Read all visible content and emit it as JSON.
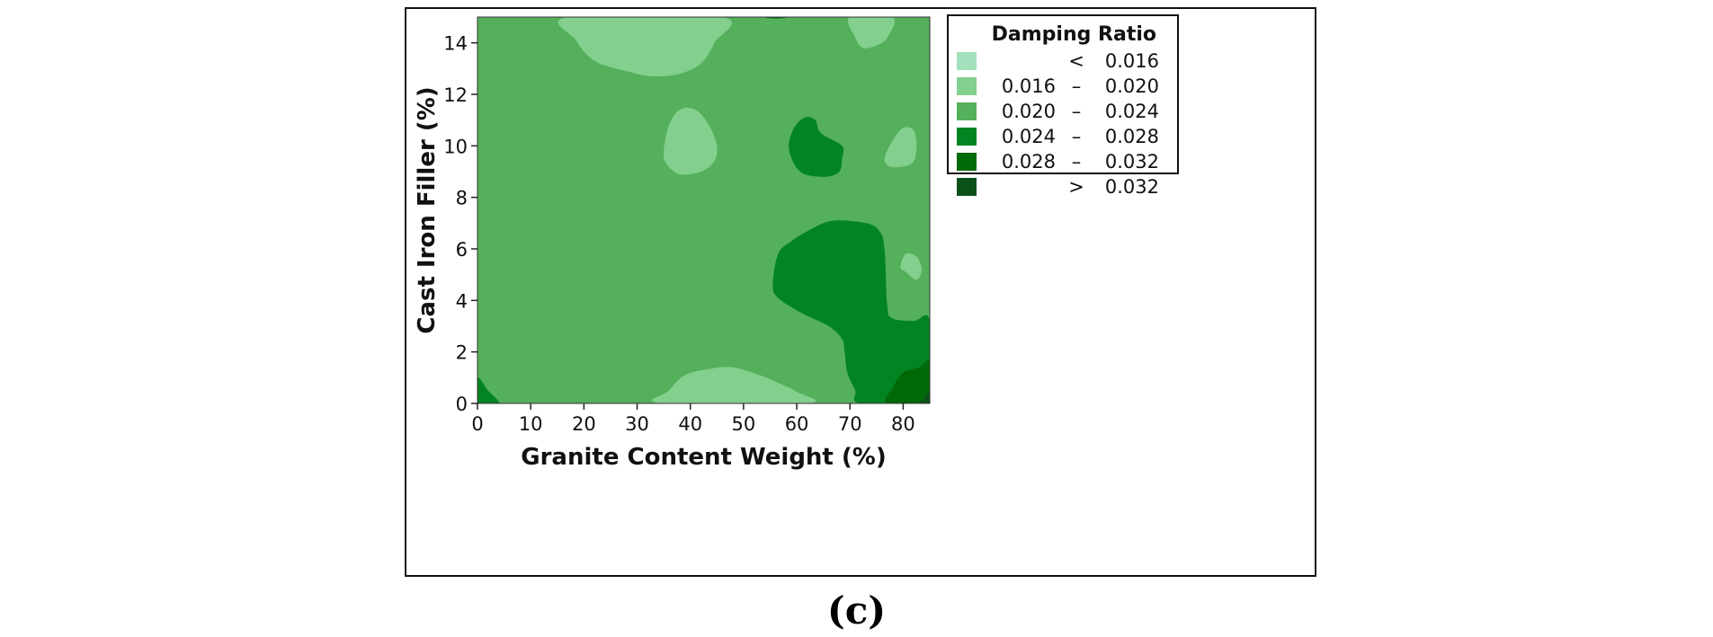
{
  "chart_data": {
    "type": "contour",
    "xlabel": "Granite Content Weight (%)",
    "ylabel": "Cast Iron Filler (%)",
    "xlim": [
      0,
      85
    ],
    "ylim": [
      0,
      15
    ],
    "xticks": [
      0,
      10,
      20,
      30,
      40,
      50,
      60,
      70,
      80
    ],
    "yticks": [
      0,
      2,
      4,
      6,
      8,
      10,
      12,
      14
    ],
    "legend": {
      "title": "Damping Ratio",
      "placement": "right",
      "entries": [
        {
          "lo": "",
          "sep": "<",
          "hi": "0.016",
          "color": "#a3e0bc"
        },
        {
          "lo": "0.016",
          "sep": "–",
          "hi": "0.020",
          "color": "#83cf8e"
        },
        {
          "lo": "0.020",
          "sep": "–",
          "hi": "0.024",
          "color": "#55b05b"
        },
        {
          "lo": "0.024",
          "sep": "–",
          "hi": "0.028",
          "color": "#028422"
        },
        {
          "lo": "0.028",
          "sep": "–",
          "hi": "0.032",
          "color": "#016a08"
        },
        {
          "lo": "",
          "sep": ">",
          "hi": "0.032",
          "color": "#0a5018"
        }
      ]
    },
    "background_level": "0.020 – 0.024",
    "regions": [
      {
        "level": "0.016 – 0.020",
        "points": [
          [
            17,
            15
          ],
          [
            46,
            15
          ],
          [
            44.5,
            14
          ],
          [
            42,
            13.2
          ],
          [
            38,
            12.8
          ],
          [
            33,
            12.7
          ],
          [
            28,
            12.9
          ],
          [
            22,
            13.3
          ],
          [
            18.5,
            14.1
          ]
        ]
      },
      {
        "level": "0.016 – 0.020",
        "points": [
          [
            35,
            9.8
          ],
          [
            36,
            10.8
          ],
          [
            38,
            11.4
          ],
          [
            41,
            11.4
          ],
          [
            43.5,
            10.8
          ],
          [
            45,
            10
          ],
          [
            44.5,
            9.4
          ],
          [
            42,
            9
          ],
          [
            38,
            8.9
          ],
          [
            35.5,
            9.3
          ]
        ]
      },
      {
        "level": "0.016 – 0.020",
        "points": [
          [
            34.5,
            0
          ],
          [
            36,
            0.5
          ],
          [
            39,
            1.1
          ],
          [
            44,
            1.35
          ],
          [
            48,
            1.4
          ],
          [
            53,
            1.1
          ],
          [
            57,
            0.75
          ],
          [
            60,
            0.45
          ],
          [
            62,
            0
          ]
        ]
      },
      {
        "level": "0.016 – 0.020",
        "points": [
          [
            70,
            15
          ],
          [
            78,
            15
          ],
          [
            77,
            14.2
          ],
          [
            75,
            13.9
          ],
          [
            72.5,
            13.8
          ],
          [
            71,
            14.2
          ]
        ]
      },
      {
        "level": "0.016 – 0.020",
        "points": [
          [
            76.5,
            9.5
          ],
          [
            78,
            10.2
          ],
          [
            80,
            10.7
          ],
          [
            82,
            10.6
          ],
          [
            82.5,
            10
          ],
          [
            82,
            9.4
          ],
          [
            80,
            9.2
          ],
          [
            77.5,
            9.2
          ]
        ]
      },
      {
        "level": "0.016 – 0.020",
        "points": [
          [
            79.5,
            5.3
          ],
          [
            80.5,
            5.8
          ],
          [
            82.5,
            5.7
          ],
          [
            83.5,
            5.2
          ],
          [
            82.5,
            4.8
          ],
          [
            80.5,
            5.1
          ]
        ]
      },
      {
        "level": "0.024 – 0.028",
        "points": [
          [
            58.5,
            10
          ],
          [
            59.5,
            10.7
          ],
          [
            61.5,
            11.1
          ],
          [
            63.5,
            11
          ],
          [
            64.5,
            10.5
          ],
          [
            68.5,
            10
          ],
          [
            68.5,
            9.5
          ],
          [
            68,
            9
          ],
          [
            65.5,
            8.8
          ],
          [
            61.5,
            8.9
          ],
          [
            59.5,
            9.3
          ]
        ]
      },
      {
        "level": "0.024 – 0.028",
        "points": [
          [
            0,
            1
          ],
          [
            2,
            0.5
          ],
          [
            4,
            0
          ],
          [
            0,
            0
          ]
        ]
      },
      {
        "level": "0.024 – 0.028",
        "points": [
          [
            85,
            3.2
          ],
          [
            82,
            3.2
          ],
          [
            78,
            3.3
          ],
          [
            77,
            3.8
          ],
          [
            76.5,
            6
          ],
          [
            75.5,
            6.7
          ],
          [
            73,
            7
          ],
          [
            67,
            7.1
          ],
          [
            63,
            6.8
          ],
          [
            59,
            6.3
          ],
          [
            56.5,
            5.8
          ],
          [
            55.5,
            4.6
          ],
          [
            56.5,
            4.1
          ],
          [
            61,
            3.5
          ],
          [
            66,
            3.0
          ],
          [
            68.5,
            2.5
          ],
          [
            69,
            2.0
          ],
          [
            69.5,
            1.2
          ],
          [
            71,
            0.5
          ],
          [
            72,
            0
          ],
          [
            85,
            0
          ]
        ]
      },
      {
        "level": "0.028 – 0.032",
        "points": [
          [
            85,
            1.6
          ],
          [
            83,
            1.4
          ],
          [
            80,
            1.2
          ],
          [
            78,
            0.6
          ],
          [
            77,
            0
          ],
          [
            85,
            0
          ]
        ]
      },
      {
        "level": "> 0.032",
        "points": [
          [
            85,
            0.5
          ],
          [
            84,
            0.2
          ],
          [
            83,
            0
          ],
          [
            85,
            0
          ]
        ]
      },
      {
        "level": "0.028 – 0.032",
        "points": [
          [
            54,
            15
          ],
          [
            55,
            14.95
          ],
          [
            57,
            14.95
          ],
          [
            58,
            15
          ]
        ]
      }
    ]
  },
  "caption": "(c)"
}
